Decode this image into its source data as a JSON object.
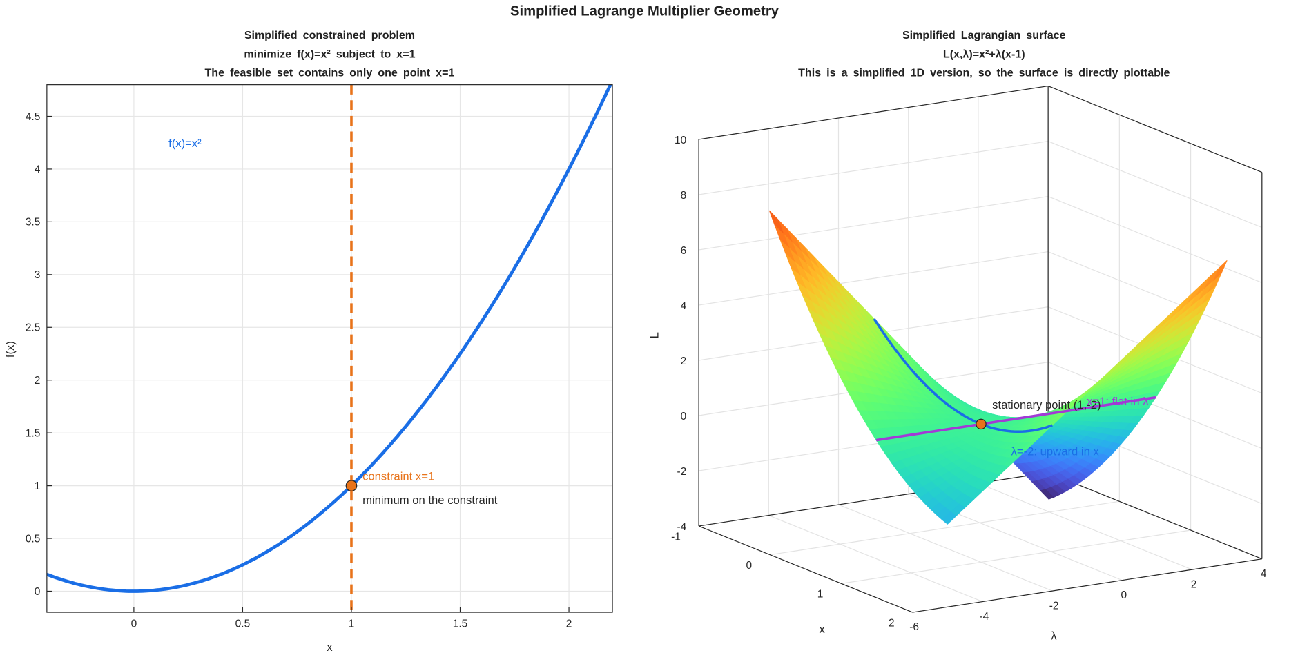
{
  "title": "Simplified Lagrange Multiplier Geometry",
  "chart_data": [
    {
      "type": "line",
      "title": [
        "Simplified constrained problem",
        "minimize f(x)=x² subject to x=1",
        "The feasible set contains only one point x=1"
      ],
      "xlabel": "x",
      "ylabel": "f(x)",
      "xlim": [
        -0.4,
        2.2
      ],
      "ylim": [
        -0.2,
        4.8
      ],
      "xticks": [
        0,
        0.5,
        1,
        1.5,
        2
      ],
      "yticks": [
        0,
        0.5,
        1,
        1.5,
        2,
        2.5,
        3,
        3.5,
        4,
        4.5
      ],
      "grid": true,
      "series": [
        {
          "name": "f(x)=x²",
          "function": "x^2",
          "x_range": [
            -0.4,
            2.2
          ],
          "color": "#1a6ee6"
        }
      ],
      "constraint": {
        "x": 1,
        "label": "constraint x=1",
        "color": "#e8731a"
      },
      "point": {
        "x": 1,
        "y": 1,
        "label": "minimum on the constraint",
        "color": "#e8731a"
      },
      "curve_label": "f(x)=x²"
    },
    {
      "type": "surface",
      "title": [
        "Simplified Lagrangian surface",
        "L(x,λ)=x²+λ(x-1)",
        "This is a simplified 1D version, so the surface is directly plottable"
      ],
      "xlabel": "x",
      "ylabel": "λ",
      "zlabel": "L",
      "xlim": [
        -1,
        2
      ],
      "ylim": [
        -6,
        4
      ],
      "zlim": [
        -4,
        10
      ],
      "xticks": [
        -1,
        0,
        1,
        2
      ],
      "yticks": [
        -6,
        -4,
        -2,
        0,
        2,
        4
      ],
      "zticks": [
        -4,
        -2,
        0,
        2,
        4,
        6,
        8,
        10
      ],
      "surface": {
        "function": "x^2+lambda*(x-1)",
        "x_range": [
          -0.5,
          2
        ],
        "lambda_range": [
          -5,
          3
        ],
        "colormap": "turbo"
      },
      "lines": [
        {
          "name": "λ=-2: upward in x",
          "lambda": -2,
          "x_range": [
            -0.5,
            2
          ],
          "color": "#1a6ee6"
        },
        {
          "name": "x=1: flat in λ",
          "x": 1,
          "lambda_range": [
            -5,
            3
          ],
          "color": "#a23ad6"
        }
      ],
      "point": {
        "x": 1,
        "lambda": -2,
        "L": 1,
        "label": "stationary point (1,-2)",
        "color": "#e8731a"
      }
    }
  ]
}
